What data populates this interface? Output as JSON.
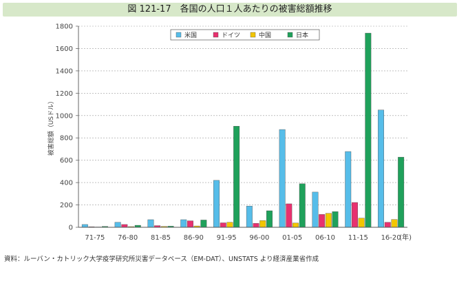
{
  "figure": {
    "title": "図 121-17　各国の人口１人あたりの被害総額推移",
    "source": "資料：ルーバン・カトリック大学疫学研究所災害データベース（EM-DAT）、UNSTATS より経済産業省作成"
  },
  "colors": {
    "title_bg": "#d7e8c9"
  },
  "chart_data": {
    "type": "bar",
    "categories": [
      "71-75",
      "76-80",
      "81-85",
      "86-90",
      "91-95",
      "96-00",
      "01-05",
      "06-10",
      "11-15",
      "16-20"
    ],
    "x_unit": "(年)",
    "ylabel": "被害総額（USドル）",
    "ylim": [
      0,
      1800
    ],
    "yticks": [
      0,
      200,
      400,
      600,
      800,
      1000,
      1200,
      1400,
      1600,
      1800
    ],
    "grid": "horizontal dashed",
    "legend_position": "top-center",
    "series": [
      {
        "name": "米国",
        "color": "#56bde9",
        "values": [
          25,
          45,
          68,
          68,
          420,
          190,
          875,
          315,
          678,
          1050
        ]
      },
      {
        "name": "ドイツ",
        "color": "#e8316f",
        "values": [
          5,
          25,
          15,
          58,
          40,
          35,
          210,
          115,
          222,
          45
        ]
      },
      {
        "name": "中国",
        "color": "#f3c600",
        "values": [
          3,
          6,
          8,
          12,
          45,
          60,
          38,
          125,
          82,
          70
        ]
      },
      {
        "name": "日本",
        "color": "#1fa15b",
        "values": [
          8,
          18,
          10,
          65,
          905,
          148,
          390,
          140,
          1738,
          628
        ]
      }
    ]
  }
}
